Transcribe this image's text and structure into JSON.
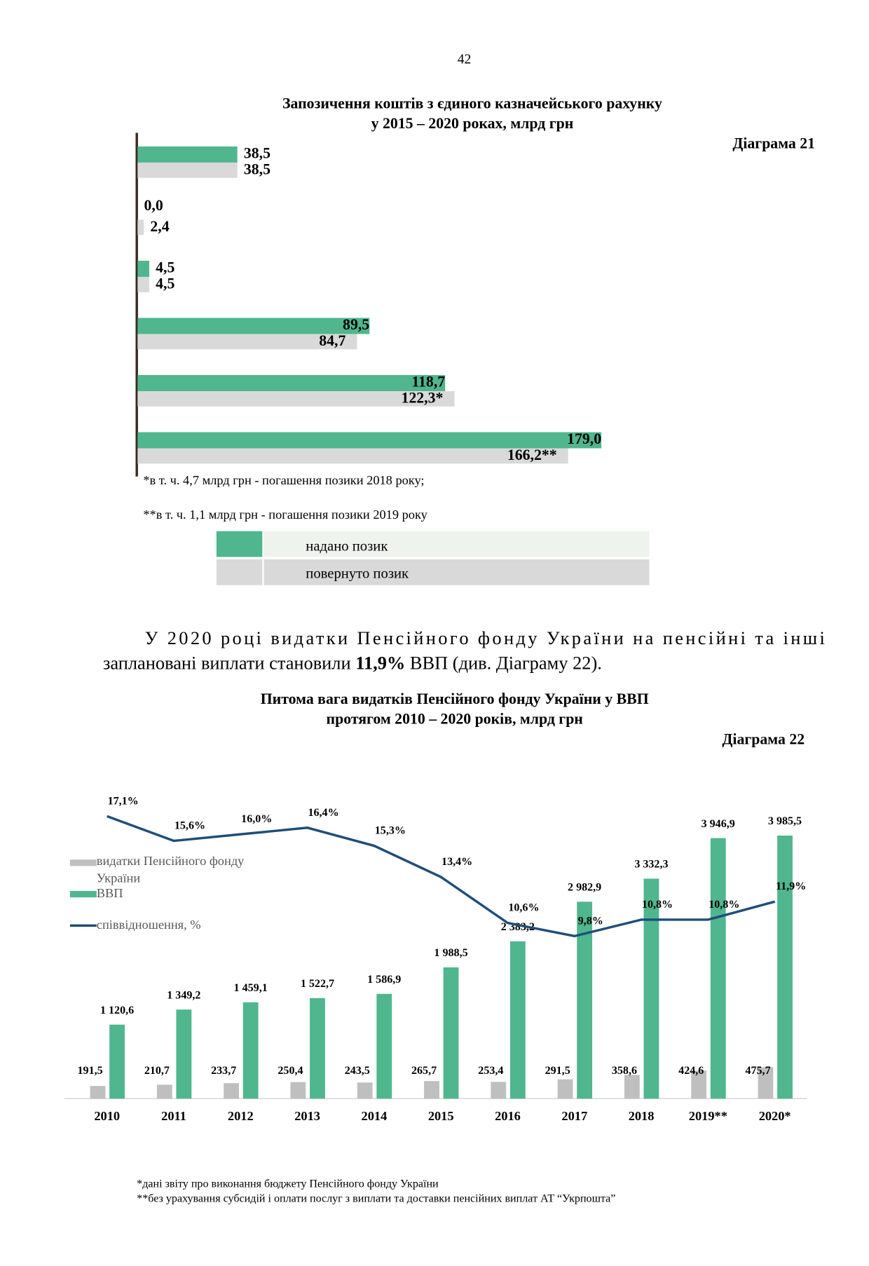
{
  "page_number": "42",
  "chart_data": [
    {
      "type": "hbar",
      "title": [
        "Запозичення коштів з єдиного казначейського рахунку",
        "у 2015 – 2020 роках, млрд грн"
      ],
      "label": "Діаграма 21",
      "categories": [
        null,
        null,
        null,
        null,
        null,
        null
      ],
      "series": [
        {
          "name": "надано позик",
          "color": "#4fb68e",
          "values": [
            38.5,
            0.0,
            4.5,
            89.5,
            118.7,
            179.0
          ],
          "value_labels": [
            "38,5",
            "0,0",
            "4,5",
            "89,5",
            "118,7",
            "179,0"
          ]
        },
        {
          "name": "повернуто позик",
          "color": "#d9d9d9",
          "values": [
            38.5,
            2.4,
            4.5,
            84.7,
            122.3,
            166.2
          ],
          "value_labels": [
            "38,5",
            "2,4",
            "4,5",
            "84,7",
            "122,3*",
            "166,2**"
          ]
        }
      ],
      "notes": [
        "*в т. ч. 4,7 млрд грн - погашення позики 2018 року;",
        "**в т. ч. 1,1 млрд грн - погашення позики 2019 року"
      ]
    },
    {
      "type": "bar-line",
      "title": [
        "Питома вага видатків Пенсійного фонду України у ВВП",
        "протягом 2010 – 2020 років, млрд грн"
      ],
      "label": "Діаграма 22",
      "categories": [
        "2010",
        "2011",
        "2012",
        "2013",
        "2014",
        "2015",
        "2016",
        "2017",
        "2018",
        "2019**",
        "2020*"
      ],
      "series": [
        {
          "name": "видатки Пенсійного фонду України",
          "color": "#bfbfbf",
          "values": [
            191.5,
            210.7,
            233.7,
            250.4,
            243.5,
            265.7,
            253.4,
            291.5,
            358.6,
            424.6,
            475.7
          ],
          "value_labels": [
            "191,5",
            "210,7",
            "233,7",
            "250,4",
            "243,5",
            "265,7",
            "253,4",
            "291,5",
            "358,6",
            "424,6",
            "475,7"
          ]
        },
        {
          "name": "ВВП",
          "color": "#4fb68e",
          "values": [
            1120.6,
            1349.2,
            1459.1,
            1522.7,
            1586.9,
            1988.5,
            2383.2,
            2982.9,
            3332.3,
            3946.9,
            3985.5
          ],
          "value_labels": [
            "1 120,6",
            "1 349,2",
            "1 459,1",
            "1 522,7",
            "1 586,9",
            "1 988,5",
            "2 383,2",
            "2 982,9",
            "3 332,3",
            "3 946,9",
            "3 985,5"
          ]
        },
        {
          "name": "співвідношення, %",
          "color": "#1f4e79",
          "axis": "y2",
          "values": [
            17.1,
            15.6,
            16.0,
            16.4,
            15.3,
            13.4,
            10.6,
            9.8,
            10.8,
            10.8,
            11.9
          ],
          "value_labels": [
            "17,1%",
            "15,6%",
            "16,0%",
            "16,4%",
            "15,3%",
            "13,4%",
            "10,6%",
            "9,8%",
            "10,8%",
            "10,8%",
            "11,9%"
          ]
        }
      ],
      "notes": [
        "*дані звіту про виконання бюджету Пенсійного фонду України",
        "**без урахування субсидій і оплати послуг з виплати та доставки пенсійних виплат АТ “Укрпошта”"
      ]
    }
  ],
  "paragraph": {
    "lines": [
      "У 2020 році видатки Пенсійного фонду України на пенсійні та інші",
      "заплановані виплати становили "
    ],
    "bold": "11,9%",
    "after": " ВВП (див. Діаграму 22)."
  }
}
